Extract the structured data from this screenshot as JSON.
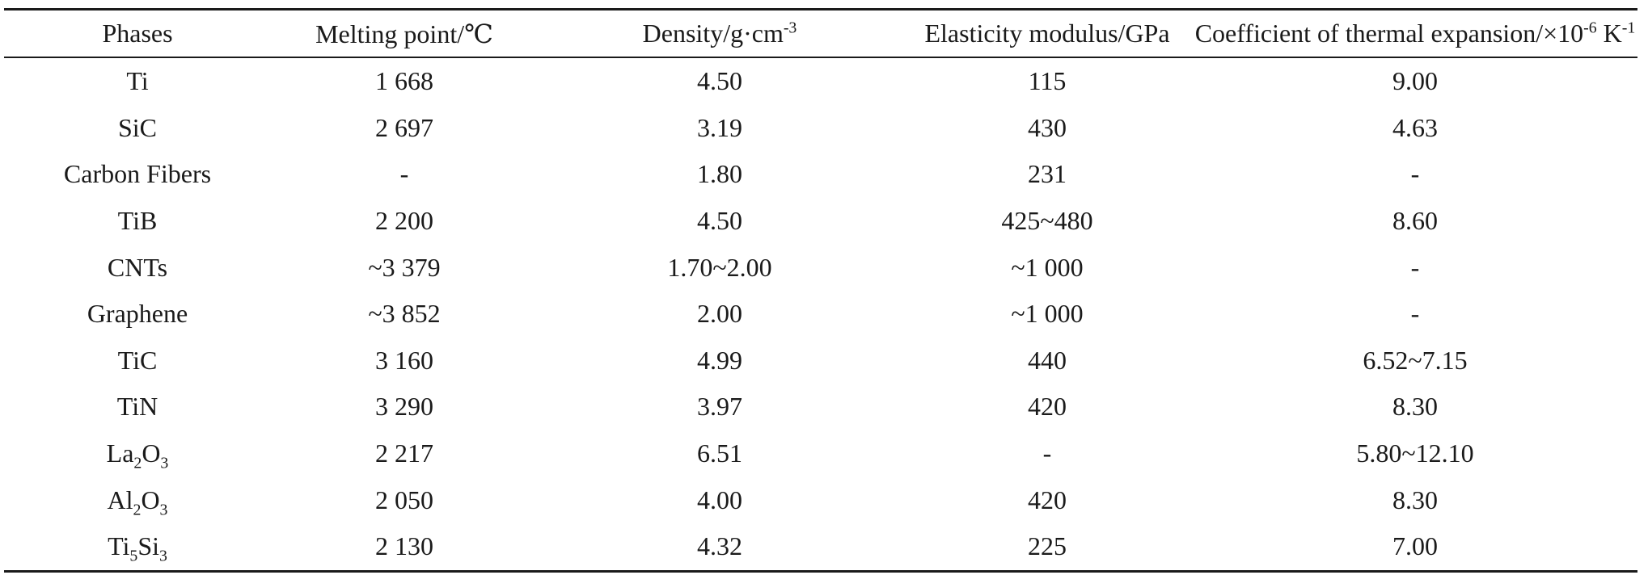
{
  "table": {
    "headers": [
      {
        "text": "Phases"
      },
      {
        "text": "Melting point/℃"
      },
      {
        "text": "Density/g·cm",
        "sup": "-3"
      },
      {
        "text": "Elasticity modulus/GPa"
      },
      {
        "text": "Coefficient of thermal expansion/×10",
        "sup": "-6",
        "tail": " K",
        "sup2": "-1"
      }
    ],
    "rows": [
      {
        "phase": [
          {
            "t": "Ti"
          }
        ],
        "melting": "1 668",
        "density": "4.50",
        "modulus": "115",
        "cte": "9.00"
      },
      {
        "phase": [
          {
            "t": "SiC"
          }
        ],
        "melting": "2 697",
        "density": "3.19",
        "modulus": "430",
        "cte": "4.63"
      },
      {
        "phase": [
          {
            "t": "Carbon Fibers"
          }
        ],
        "melting": "-",
        "density": "1.80",
        "modulus": "231",
        "cte": "-"
      },
      {
        "phase": [
          {
            "t": "TiB"
          }
        ],
        "melting": "2 200",
        "density": "4.50",
        "modulus": "425~480",
        "cte": "8.60"
      },
      {
        "phase": [
          {
            "t": "CNTs"
          }
        ],
        "melting": "~3 379",
        "density": "1.70~2.00",
        "modulus": "~1 000",
        "cte": "-"
      },
      {
        "phase": [
          {
            "t": "Graphene"
          }
        ],
        "melting": "~3 852",
        "density": "2.00",
        "modulus": "~1 000",
        "cte": "-"
      },
      {
        "phase": [
          {
            "t": "TiC"
          }
        ],
        "melting": "3 160",
        "density": "4.99",
        "modulus": "440",
        "cte": "6.52~7.15"
      },
      {
        "phase": [
          {
            "t": "TiN"
          }
        ],
        "melting": "3 290",
        "density": "3.97",
        "modulus": "420",
        "cte": "8.30"
      },
      {
        "phase": [
          {
            "t": "La"
          },
          {
            "t": "2",
            "sub": true
          },
          {
            "t": "O"
          },
          {
            "t": "3",
            "sub": true
          }
        ],
        "melting": "2 217",
        "density": "6.51",
        "modulus": "-",
        "cte": "5.80~12.10"
      },
      {
        "phase": [
          {
            "t": "Al"
          },
          {
            "t": "2",
            "sub": true
          },
          {
            "t": "O"
          },
          {
            "t": "3",
            "sub": true
          }
        ],
        "melting": "2 050",
        "density": "4.00",
        "modulus": "420",
        "cte": "8.30"
      },
      {
        "phase": [
          {
            "t": "Ti"
          },
          {
            "t": "5",
            "sub": true
          },
          {
            "t": "Si"
          },
          {
            "t": "3",
            "sub": true
          }
        ],
        "melting": "2 130",
        "density": "4.32",
        "modulus": "225",
        "cte": "7.00"
      }
    ]
  }
}
